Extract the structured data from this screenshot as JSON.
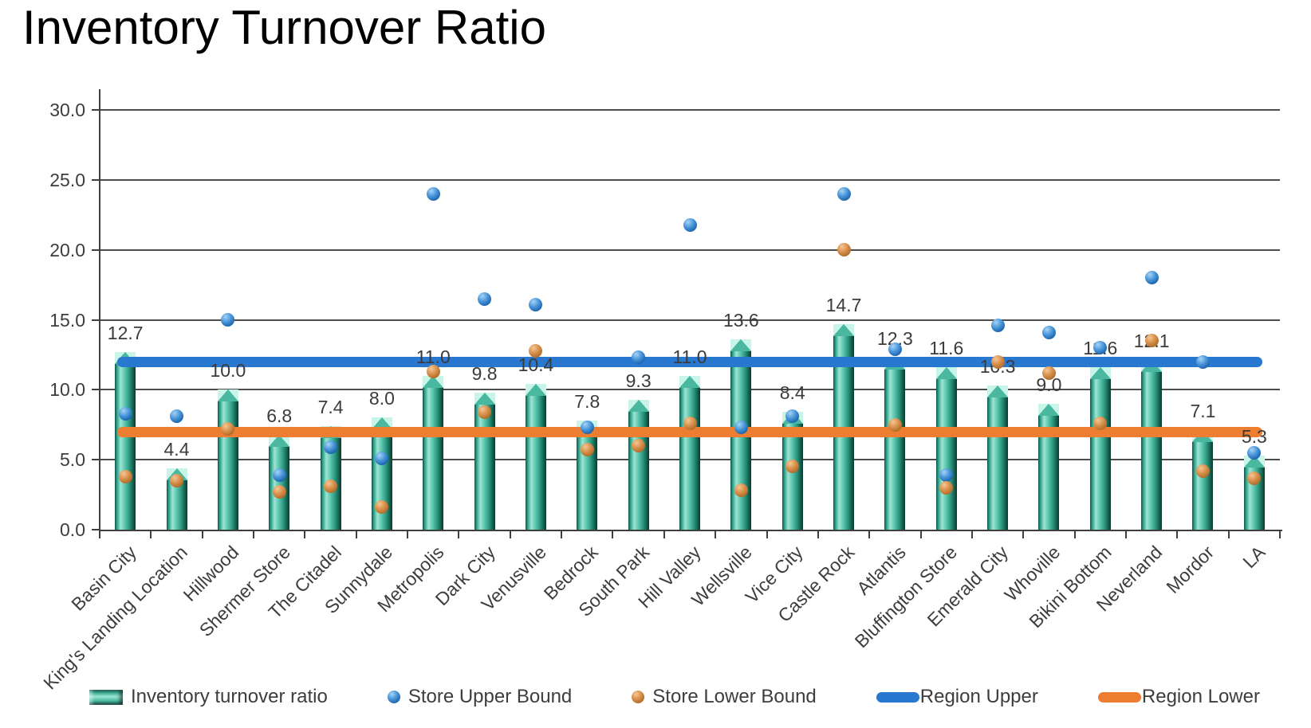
{
  "title": "Inventory Turnover Ratio",
  "chart_data": {
    "type": "bar",
    "title": "Inventory Turnover Ratio",
    "categories": [
      "Basin City",
      "King's Landing Location",
      "Hillwood",
      "Shermer Store",
      "The Citadel",
      "Sunnydale",
      "Metropolis",
      "Dark City",
      "Venusville",
      "Bedrock",
      "South Park",
      "Hill Valley",
      "Wellsville",
      "Vice City",
      "Castle Rock",
      "Atlantis",
      "Bluffington Store",
      "Emerald City",
      "Whoville",
      "Bikini Bottom",
      "Neverland",
      "Mordor",
      "LA"
    ],
    "series": [
      {
        "name": "Inventory turnover ratio",
        "type": "bar",
        "color": "#2e9e88",
        "values": [
          12.7,
          4.4,
          10.0,
          6.8,
          7.4,
          8.0,
          11.0,
          9.8,
          10.4,
          7.8,
          9.3,
          11.0,
          13.6,
          8.4,
          14.7,
          12.3,
          11.6,
          10.3,
          9.0,
          11.6,
          12.1,
          7.1,
          5.3
        ]
      },
      {
        "name": "Store Upper Bound",
        "type": "point",
        "color": "#1d66b0",
        "values": [
          8.3,
          8.1,
          15.0,
          3.9,
          5.9,
          5.1,
          24.0,
          16.5,
          16.1,
          7.3,
          12.3,
          21.8,
          7.3,
          8.1,
          24.0,
          12.9,
          3.9,
          14.6,
          14.1,
          13.0,
          18.0,
          12.0,
          5.5
        ]
      },
      {
        "name": "Store Lower Bound",
        "type": "point",
        "color": "#b26d2a",
        "values": [
          3.8,
          3.5,
          7.2,
          2.7,
          3.1,
          1.6,
          11.3,
          8.4,
          12.8,
          5.7,
          6.0,
          7.6,
          2.8,
          4.5,
          20.0,
          7.5,
          3.0,
          12.0,
          11.2,
          7.6,
          13.5,
          4.2,
          3.7
        ]
      },
      {
        "name": "Region Upper",
        "type": "hline",
        "color": "#2878d0",
        "value": 12.0
      },
      {
        "name": "Region Lower",
        "type": "hline",
        "color": "#ed7d31",
        "value": 7.0
      }
    ],
    "ylim": [
      0,
      30
    ],
    "ytick_step": 5,
    "yticks": [
      "0.0",
      "5.0",
      "10.0",
      "15.0",
      "20.0",
      "25.0",
      "30.0"
    ],
    "grid": true,
    "legend_position": "bottom",
    "bar_label_decimals": 1
  }
}
